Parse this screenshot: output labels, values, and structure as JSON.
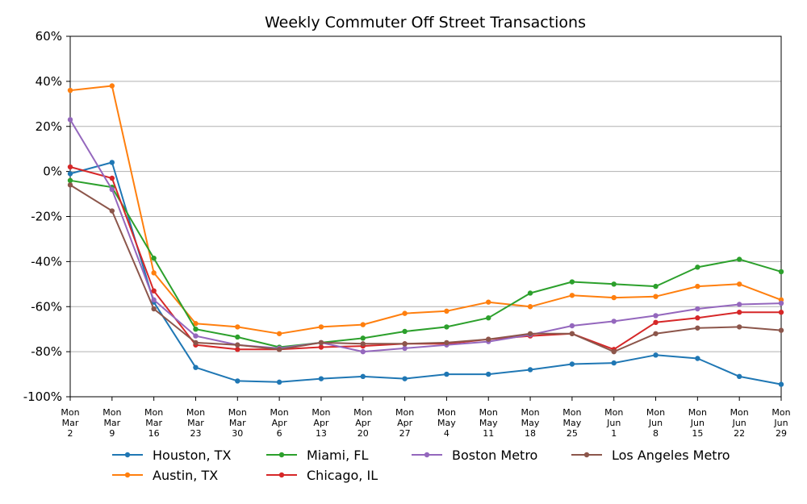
{
  "chart_data": {
    "type": "line",
    "title": "Weekly Commuter Off Street Transactions",
    "xlabel": "",
    "ylabel": "",
    "ylim": [
      -100,
      60
    ],
    "y_ticks": [
      "60%",
      "40%",
      "20%",
      "0%",
      "-20%",
      "-40%",
      "-60%",
      "-80%",
      "-100%"
    ],
    "y_tick_values": [
      60,
      40,
      20,
      0,
      -20,
      -40,
      -60,
      -80,
      -100
    ],
    "grid": "horizontal",
    "legend_position": "bottom",
    "x": [
      [
        "Mon",
        "Mar",
        "2"
      ],
      [
        "Mon",
        "Mar",
        "9"
      ],
      [
        "Mon",
        "Mar",
        "16"
      ],
      [
        "Mon",
        "Mar",
        "23"
      ],
      [
        "Mon",
        "Mar",
        "30"
      ],
      [
        "Mon",
        "Apr",
        "6"
      ],
      [
        "Mon",
        "Apr",
        "13"
      ],
      [
        "Mon",
        "Apr",
        "20"
      ],
      [
        "Mon",
        "Apr",
        "27"
      ],
      [
        "Mon",
        "May",
        "4"
      ],
      [
        "Mon",
        "May",
        "11"
      ],
      [
        "Mon",
        "May",
        "18"
      ],
      [
        "Mon",
        "May",
        "25"
      ],
      [
        "Mon",
        "Jun",
        "1"
      ],
      [
        "Mon",
        "Jun",
        "8"
      ],
      [
        "Mon",
        "Jun",
        "15"
      ],
      [
        "Mon",
        "Jun",
        "22"
      ],
      [
        "Mon",
        "Jun",
        "29"
      ]
    ],
    "series": [
      {
        "name": "Houston, TX",
        "color": "#1f77b4",
        "values": [
          -1,
          4,
          -58,
          -87,
          -93,
          -93.5,
          -92,
          -91,
          -92,
          -90,
          -90,
          -88,
          -85.5,
          -85,
          -81.5,
          -83,
          -91,
          -94.5
        ]
      },
      {
        "name": "Austin, TX",
        "color": "#ff7f0e",
        "values": [
          36,
          38,
          -45,
          -67.5,
          -69,
          -72,
          -69,
          -68,
          -63,
          -62,
          -58,
          -60,
          -55,
          -56,
          -55.5,
          -51,
          -50,
          -57
        ]
      },
      {
        "name": "Miami, FL",
        "color": "#2ca02c",
        "values": [
          -4,
          -7,
          -38.5,
          -70,
          -73.5,
          -78,
          -76,
          -74,
          -71,
          -69,
          -65,
          -54,
          -49,
          -50,
          -51,
          -42.5,
          -39,
          -44.5
        ]
      },
      {
        "name": "Chicago, IL",
        "color": "#d62728",
        "values": [
          2,
          -3,
          -53,
          -77,
          -79,
          -79,
          -78,
          -77.5,
          -76.5,
          -76.5,
          -74.5,
          -73,
          -72,
          -79,
          -67,
          -65,
          -62.5,
          -62.5
        ]
      },
      {
        "name": "Boston Metro",
        "color": "#9467bd",
        "values": [
          23,
          -8,
          -57,
          -73,
          -77,
          -78.5,
          -76,
          -80,
          -78.5,
          -77,
          -75.5,
          -72.5,
          -68.5,
          -66.5,
          -64,
          -61,
          -59,
          -58.5
        ]
      },
      {
        "name": "Los Angeles Metro",
        "color": "#8c564b",
        "values": [
          -6,
          -17.5,
          -61,
          -76,
          -77,
          -79,
          -76,
          -76.5,
          -76.5,
          -76,
          -74.5,
          -72,
          -72,
          -80,
          -72,
          -69.5,
          -69,
          -70.5
        ]
      }
    ]
  }
}
